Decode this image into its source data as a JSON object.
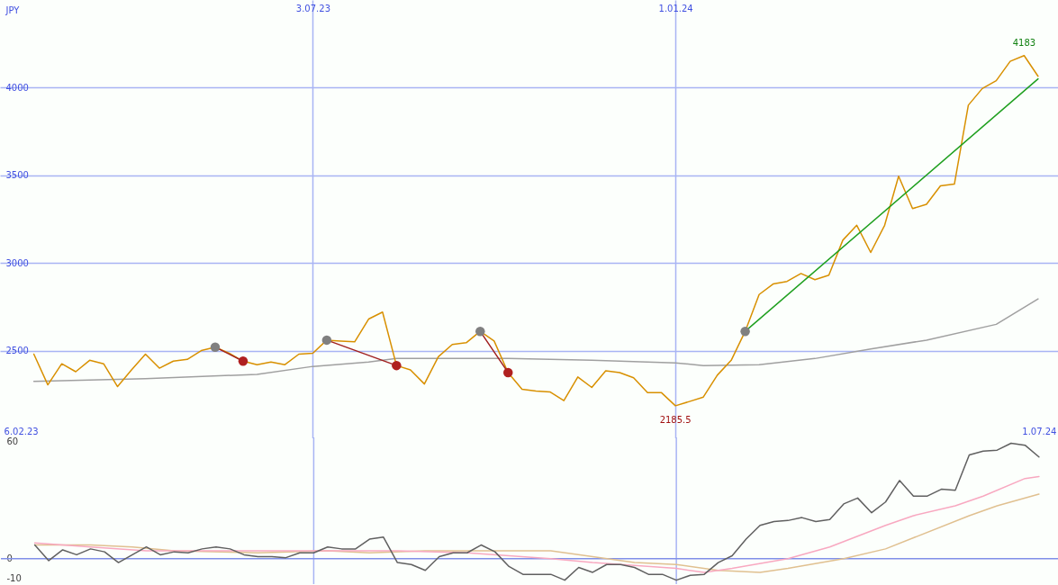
{
  "chart_data": [
    {
      "type": "line",
      "ylabel": "JPY",
      "x": [
        "2023-02-13",
        "2023-02-20",
        "2023-02-27",
        "2023-03-06",
        "2023-03-13",
        "2023-03-20",
        "2023-03-27",
        "2023-04-03",
        "2023-04-10",
        "2023-04-17",
        "2023-04-24",
        "2023-05-01",
        "2023-05-08",
        "2023-05-15",
        "2023-05-22",
        "2023-05-29",
        "2023-06-05",
        "2023-06-12",
        "2023-06-19",
        "2023-06-26",
        "2023-07-03",
        "2023-07-10",
        "2023-07-17",
        "2023-07-24",
        "2023-07-31",
        "2023-08-07",
        "2023-08-14",
        "2023-08-21",
        "2023-08-28",
        "2023-09-04",
        "2023-09-11",
        "2023-09-18",
        "2023-09-25",
        "2023-10-02",
        "2023-10-09",
        "2023-10-16",
        "2023-10-23",
        "2023-10-30",
        "2023-11-06",
        "2023-11-13",
        "2023-11-20",
        "2023-11-27",
        "2023-12-04",
        "2023-12-11",
        "2023-12-18",
        "2023-12-25",
        "2024-01-01",
        "2024-01-08",
        "2024-01-15",
        "2024-01-22",
        "2024-01-29",
        "2024-02-05",
        "2024-02-12",
        "2024-02-19",
        "2024-02-26",
        "2024-03-04",
        "2024-03-11",
        "2024-03-18",
        "2024-03-25",
        "2024-04-01",
        "2024-04-08",
        "2024-04-15",
        "2024-04-22",
        "2024-04-29",
        "2024-05-06",
        "2024-05-13",
        "2024-05-20",
        "2024-05-27",
        "2024-06-03",
        "2024-06-10",
        "2024-06-17",
        "2024-06-24",
        "2024-07-01"
      ],
      "series": [
        {
          "color": "#a0a0a0",
          "x": [
            "2023-02-13",
            "2023-04-10",
            "2023-06-05",
            "2023-07-03",
            "2023-07-31",
            "2023-08-14",
            "2023-10-09",
            "2023-11-20",
            "2024-01-01",
            "2024-01-15",
            "2024-02-12",
            "2024-03-11",
            "2024-04-08",
            "2024-05-06",
            "2024-06-10",
            "2024-07-01"
          ],
          "values": [
            2325,
            2340,
            2365,
            2410,
            2435,
            2455,
            2455,
            2445,
            2430,
            2415,
            2420,
            2455,
            2510,
            2560,
            2650,
            2795
          ]
        },
        {
          "color": "#d89000",
          "values": [
            2480,
            2305,
            2425,
            2380,
            2445,
            2425,
            2295,
            2390,
            2480,
            2400,
            2440,
            2450,
            2500,
            2520,
            2485,
            2440,
            2420,
            2435,
            2420,
            2480,
            2485,
            2560,
            2555,
            2550,
            2680,
            2720,
            2415,
            2390,
            2310,
            2465,
            2535,
            2545,
            2610,
            2555,
            2375,
            2280,
            2270,
            2265,
            2215,
            2350,
            2290,
            2385,
            2375,
            2345,
            2260,
            2260,
            2185.5,
            2210,
            2235,
            2360,
            2445,
            2610,
            2820,
            2880,
            2895,
            2940,
            2905,
            2930,
            3130,
            3215,
            3060,
            3215,
            3495,
            3310,
            3335,
            3440,
            3450,
            3900,
            3995,
            4040,
            4150,
            4183,
            4065
          ]
        },
        {
          "color": "#a02020",
          "x": [
            "2023-05-15",
            "2023-05-29"
          ],
          "values": [
            2520,
            2440
          ]
        },
        {
          "color": "#a02020",
          "x": [
            "2023-07-10",
            "2023-08-14"
          ],
          "values": [
            2560,
            2415
          ]
        },
        {
          "color": "#a02020",
          "x": [
            "2023-09-25",
            "2023-10-09"
          ],
          "values": [
            2610,
            2375
          ]
        },
        {
          "color": "#20a020",
          "x": [
            "2024-02-05",
            "2024-07-01"
          ],
          "values": [
            2610,
            4050
          ]
        },
        {
          "type": "scatter",
          "color": "#808080",
          "x": [
            "2023-05-15",
            "2023-07-10",
            "2023-09-25",
            "2024-02-05"
          ],
          "values": [
            2520,
            2560,
            2610,
            2610
          ]
        },
        {
          "type": "scatter",
          "color": "#b02020",
          "x": [
            "2023-05-29",
            "2023-08-14",
            "2023-10-09"
          ],
          "values": [
            2440,
            2415,
            2375
          ]
        }
      ],
      "xlim": [
        "2023-01-27",
        "2024-07-11"
      ],
      "xticks": [
        {
          "value": "2023-07-03",
          "label": "3.07.23"
        },
        {
          "value": "2024-01-01",
          "label": "1.01.24"
        }
      ],
      "ylim": [
        2000,
        4500
      ],
      "yticks": [
        2500,
        3000,
        3500,
        4000
      ],
      "grid": true,
      "annotations": [
        {
          "text": "4183",
          "x": "2024-06-24",
          "y": 4183
        },
        {
          "text": "2185.5",
          "x": "2024-01-01",
          "y": 2185.5
        }
      ]
    },
    {
      "type": "line",
      "x": [
        "2023-02-13",
        "2023-02-20",
        "2023-02-27",
        "2023-03-06",
        "2023-03-13",
        "2023-03-20",
        "2023-03-27",
        "2023-04-03",
        "2023-04-10",
        "2023-04-17",
        "2023-04-24",
        "2023-05-01",
        "2023-05-08",
        "2023-05-15",
        "2023-05-22",
        "2023-05-29",
        "2023-06-05",
        "2023-06-12",
        "2023-06-19",
        "2023-06-26",
        "2023-07-03",
        "2023-07-10",
        "2023-07-17",
        "2023-07-24",
        "2023-07-31",
        "2023-08-07",
        "2023-08-14",
        "2023-08-21",
        "2023-08-28",
        "2023-09-04",
        "2023-09-11",
        "2023-09-18",
        "2023-09-25",
        "2023-10-02",
        "2023-10-09",
        "2023-10-16",
        "2023-10-23",
        "2023-10-30",
        "2023-11-06",
        "2023-11-13",
        "2023-11-20",
        "2023-11-27",
        "2023-12-04",
        "2023-12-11",
        "2023-12-18",
        "2023-12-25",
        "2024-01-01",
        "2024-01-08",
        "2024-01-15",
        "2024-01-22",
        "2024-01-29",
        "2024-02-05",
        "2024-02-12",
        "2024-02-19",
        "2024-02-26",
        "2024-03-04",
        "2024-03-11",
        "2024-03-18",
        "2024-03-25",
        "2024-04-01",
        "2024-04-08",
        "2024-04-15",
        "2024-04-22",
        "2024-04-29",
        "2024-05-06",
        "2024-05-13",
        "2024-05-20",
        "2024-05-27",
        "2024-06-03",
        "2024-06-10",
        "2024-06-17",
        "2024-06-24",
        "2024-07-01"
      ],
      "series": [
        {
          "color": "#e0c090",
          "x": [
            "2023-02-13",
            "2023-03-13",
            "2023-04-03",
            "2023-04-24",
            "2023-06-05",
            "2023-07-10",
            "2023-07-31",
            "2023-08-28",
            "2023-10-23",
            "2023-10-30",
            "2023-12-11",
            "2024-01-01",
            "2024-01-22",
            "2024-02-12",
            "2024-02-26",
            "2024-03-25",
            "2024-04-15",
            "2024-05-27",
            "2024-06-10",
            "2024-07-01"
          ],
          "values": [
            7,
            7,
            6,
            4,
            3,
            4,
            3,
            4,
            4,
            4,
            -2,
            -3,
            -6,
            -7,
            -5,
            0,
            5,
            22,
            27,
            33
          ]
        },
        {
          "color": "#f8a8c0",
          "x": [
            "2023-02-13",
            "2023-03-13",
            "2023-04-10",
            "2023-05-22",
            "2023-07-31",
            "2023-08-14",
            "2023-09-18",
            "2023-10-30",
            "2023-11-20",
            "2024-01-01",
            "2024-01-15",
            "2024-01-29",
            "2024-02-26",
            "2024-03-18",
            "2024-04-15",
            "2024-04-29",
            "2024-05-20",
            "2024-06-03",
            "2024-06-24",
            "2024-07-01"
          ],
          "values": [
            8,
            6,
            4,
            4,
            4,
            4,
            3,
            0,
            -2,
            -5,
            -7,
            -5,
            0,
            6,
            17,
            22,
            27,
            32,
            41,
            42
          ]
        },
        {
          "color": "#606060",
          "values": [
            7,
            -1,
            4.5,
            2,
            5,
            3.5,
            -2,
            2,
            6,
            2,
            3.5,
            3,
            5,
            6,
            5,
            2,
            1,
            1,
            0.5,
            3,
            3,
            6,
            5,
            5,
            10,
            11,
            -2,
            -3,
            -6,
            1,
            3,
            3,
            7,
            3.5,
            -4,
            -8,
            -8,
            -8,
            -11,
            -4.5,
            -7,
            -3,
            -3,
            -4.5,
            -8,
            -8,
            -11,
            -8.5,
            -8,
            -2,
            1.5,
            10,
            17,
            19,
            19.5,
            21,
            19,
            20,
            28,
            31,
            23.5,
            29,
            40,
            32,
            32,
            35.5,
            35,
            53,
            55,
            55.5,
            59,
            58,
            52
          ]
        }
      ],
      "xlim": [
        "2023-01-27",
        "2024-07-11"
      ],
      "xticks": [
        {
          "value": "2023-02-06",
          "label": "6.02.23"
        },
        {
          "value": "2024-07-01",
          "label": "1.07.24"
        }
      ],
      "ylim": [
        -13,
        62
      ],
      "yticks": [
        -10,
        0,
        60
      ],
      "ref_lines": [
        {
          "axis": "y",
          "value": 0,
          "color": "#8090e8"
        },
        {
          "axis": "x",
          "value": "2023-07-03",
          "color": "#a8b4f4"
        },
        {
          "axis": "x",
          "value": "2024-01-01",
          "color": "#a8b4f4"
        }
      ]
    }
  ]
}
